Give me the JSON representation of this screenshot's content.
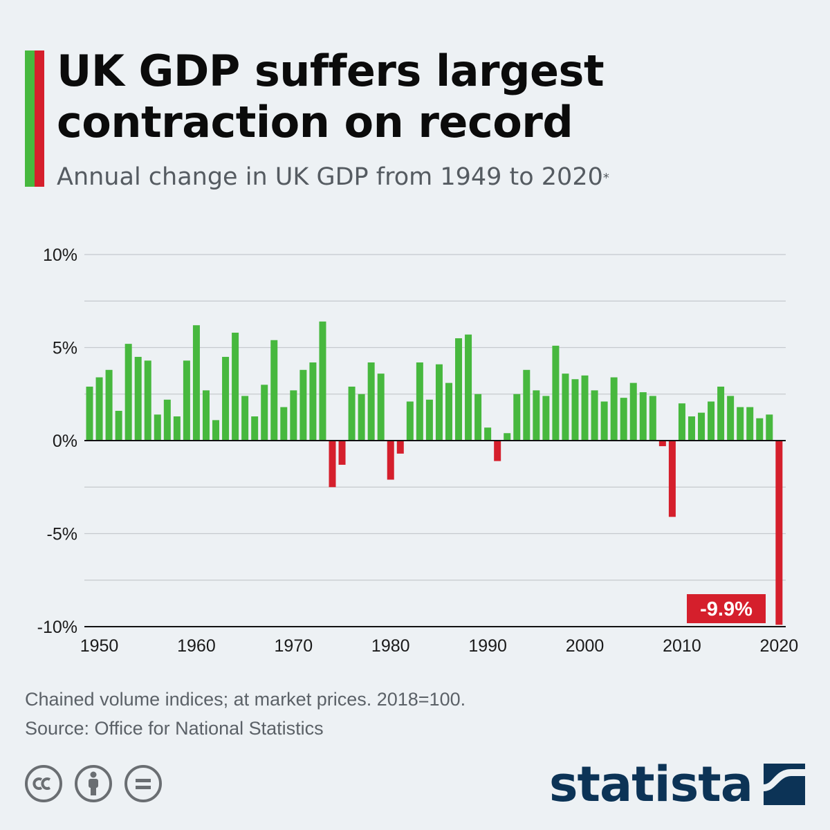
{
  "title": "UK GDP suffers largest contraction on record",
  "subtitle": "Annual change in UK GDP from 1949 to 2020",
  "subtitle_marker": "*",
  "colors": {
    "positive": "#47b83e",
    "negative": "#d51f2c",
    "grid": "#c5c9cd",
    "axis": "#111111",
    "brand": "#0c3356"
  },
  "chart_data": {
    "type": "bar",
    "x": [
      1949,
      1950,
      1951,
      1952,
      1953,
      1954,
      1955,
      1956,
      1957,
      1958,
      1959,
      1960,
      1961,
      1962,
      1963,
      1964,
      1965,
      1966,
      1967,
      1968,
      1969,
      1970,
      1971,
      1972,
      1973,
      1974,
      1975,
      1976,
      1977,
      1978,
      1979,
      1980,
      1981,
      1982,
      1983,
      1984,
      1985,
      1986,
      1987,
      1988,
      1989,
      1990,
      1991,
      1992,
      1993,
      1994,
      1995,
      1996,
      1997,
      1998,
      1999,
      2000,
      2001,
      2002,
      2003,
      2004,
      2005,
      2006,
      2007,
      2008,
      2009,
      2010,
      2011,
      2012,
      2013,
      2014,
      2015,
      2016,
      2017,
      2018,
      2019,
      2020
    ],
    "values": [
      2.9,
      3.4,
      3.8,
      1.6,
      5.2,
      4.5,
      4.3,
      1.4,
      2.2,
      1.3,
      4.3,
      6.2,
      2.7,
      1.1,
      4.5,
      5.8,
      2.4,
      1.3,
      3.0,
      5.4,
      1.8,
      2.7,
      3.8,
      4.2,
      6.4,
      -2.5,
      -1.3,
      2.9,
      2.5,
      4.2,
      3.6,
      -2.1,
      -0.7,
      2.1,
      4.2,
      2.2,
      4.1,
      3.1,
      5.5,
      5.7,
      2.5,
      0.7,
      -1.1,
      0.4,
      2.5,
      3.8,
      2.7,
      2.4,
      5.1,
      3.6,
      3.3,
      3.5,
      2.7,
      2.1,
      3.4,
      2.3,
      3.1,
      2.6,
      2.4,
      -0.3,
      -4.1,
      2.0,
      1.3,
      1.5,
      2.1,
      2.9,
      2.4,
      1.8,
      1.8,
      1.2,
      1.4,
      -9.9
    ],
    "ylim": [
      -10,
      10
    ],
    "yticks": [
      {
        "value": 10,
        "label": "10%"
      },
      {
        "value": 5,
        "label": "5%"
      },
      {
        "value": 0,
        "label": "0%"
      },
      {
        "value": -5,
        "label": "-5%"
      },
      {
        "value": -10,
        "label": "-10%"
      }
    ],
    "gridlines": [
      10,
      7.5,
      5,
      2.5,
      0,
      -2.5,
      -5,
      -7.5
    ],
    "xticks": [
      1950,
      1960,
      1970,
      1980,
      1990,
      2000,
      2010,
      2020
    ],
    "annotation": {
      "x": 2020,
      "label": "-9.9%"
    },
    "grid": true,
    "legend": "none"
  },
  "footer": {
    "note": "Chained volume indices; at market prices. 2018=100.",
    "source": "Source: Office for National Statistics",
    "brand": "statista"
  },
  "license_icons": [
    "creative-commons-icon",
    "attribution-icon",
    "no-derivatives-icon"
  ]
}
